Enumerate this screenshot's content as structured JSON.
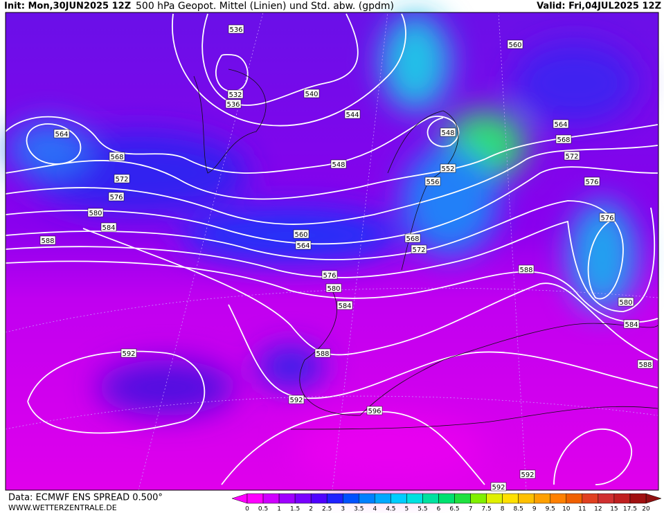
{
  "header": {
    "init": "Init: Mon,30JUN2025 12Z",
    "title": "500 hPa Geopot. Mittel (Linien) und Std. abw. (gpdm)",
    "valid": "Valid: Fri,04JUL2025 12Z"
  },
  "contour_labels": [
    "536",
    "560",
    "532",
    "536",
    "540",
    "544",
    "564",
    "548",
    "564",
    "568",
    "568",
    "572",
    "548",
    "552",
    "572",
    "556",
    "576",
    "576",
    "580",
    "576",
    "584",
    "560",
    "568",
    "588",
    "564",
    "572",
    "588",
    "576",
    "580",
    "580",
    "584",
    "584",
    "592",
    "588",
    "588",
    "592",
    "596",
    "592",
    "592"
  ],
  "footer": {
    "source": "Data: ECMWF ENS SPREAD 0.500°",
    "website": "WWW.WETTERZENTRALE.DE"
  },
  "colorbar_labels": [
    "0",
    "0.5",
    "1",
    "1.5",
    "2",
    "2.5",
    "3",
    "3.5",
    "4",
    "4.5",
    "5",
    "5.5",
    "6",
    "6.5",
    "7",
    "7.5",
    "8",
    "8.5",
    "9",
    "9.5",
    "10",
    "11",
    "12",
    "15",
    "17.5",
    "20"
  ]
}
